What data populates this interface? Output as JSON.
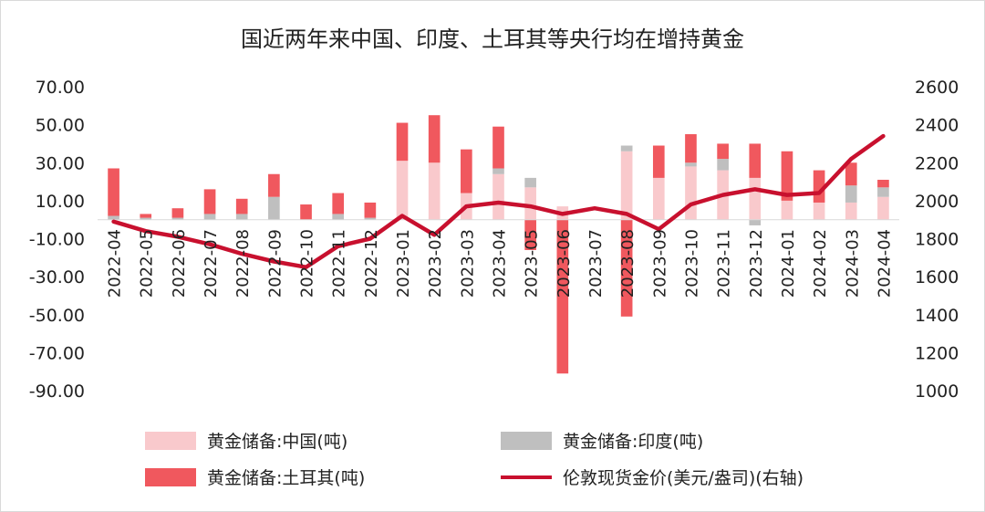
{
  "chart_data": {
    "type": "bar",
    "title": "国近两年来中国、印度、土耳其等央行均在增持黄金",
    "categories": [
      "2022-04",
      "2022-05",
      "2022-06",
      "2022-07",
      "2022-08",
      "2022-09",
      "2022-10",
      "2022-11",
      "2022-12",
      "2023-01",
      "2023-02",
      "2023-03",
      "2023-04",
      "2023-05",
      "2023-06",
      "2023-07",
      "2023-08",
      "2023-09",
      "2023-10",
      "2023-11",
      "2023-12",
      "2024-01",
      "2024-02",
      "2024-03",
      "2024-04"
    ],
    "stacked": true,
    "ylim_left": [
      -90,
      70
    ],
    "yticks_left": [
      "70.00",
      "50.00",
      "30.00",
      "10.00",
      "-10.00",
      "-30.00",
      "-50.00",
      "-70.00",
      "-90.00"
    ],
    "ylim_right": [
      1000,
      2600
    ],
    "yticks_right": [
      "2600",
      "2400",
      "2200",
      "2000",
      "1800",
      "1600",
      "1400",
      "1200",
      "1000"
    ],
    "series": [
      {
        "name": "黄金储备:中国(吨)",
        "axis": "left",
        "color": "#f9c9cc",
        "values": [
          0,
          0,
          0,
          0,
          0,
          0,
          0,
          0,
          0,
          31,
          30,
          14,
          24,
          17,
          7,
          0,
          36,
          22,
          28,
          26,
          22,
          10,
          9,
          9,
          12
        ]
      },
      {
        "name": "黄金储备:印度(吨)",
        "axis": "left",
        "color": "#bfbfbf",
        "values": [
          2,
          1,
          1,
          3,
          3,
          12,
          0,
          3,
          1,
          0,
          0,
          0,
          3,
          5,
          0,
          0,
          3,
          0,
          2,
          6,
          -3,
          0,
          0,
          9,
          5
        ]
      },
      {
        "name": "黄金储备:土耳其(吨)",
        "axis": "left",
        "color": "#f0585e",
        "values": [
          25,
          2,
          5,
          13,
          8,
          12,
          8,
          11,
          8,
          20,
          25,
          23,
          22,
          -16,
          -81,
          0,
          -51,
          17,
          15,
          8,
          18,
          26,
          17,
          12,
          4
        ]
      },
      {
        "name": "伦敦现货金价(美元/盎司)(右轴)",
        "axis": "right",
        "type": "line",
        "color": "#c8102e",
        "values": [
          1890,
          1840,
          1810,
          1770,
          1720,
          1680,
          1650,
          1760,
          1800,
          1920,
          1820,
          1970,
          1990,
          1970,
          1930,
          1960,
          1930,
          1850,
          1980,
          2030,
          2060,
          2030,
          2040,
          2220,
          2340
        ]
      }
    ],
    "legend": "bottom"
  }
}
